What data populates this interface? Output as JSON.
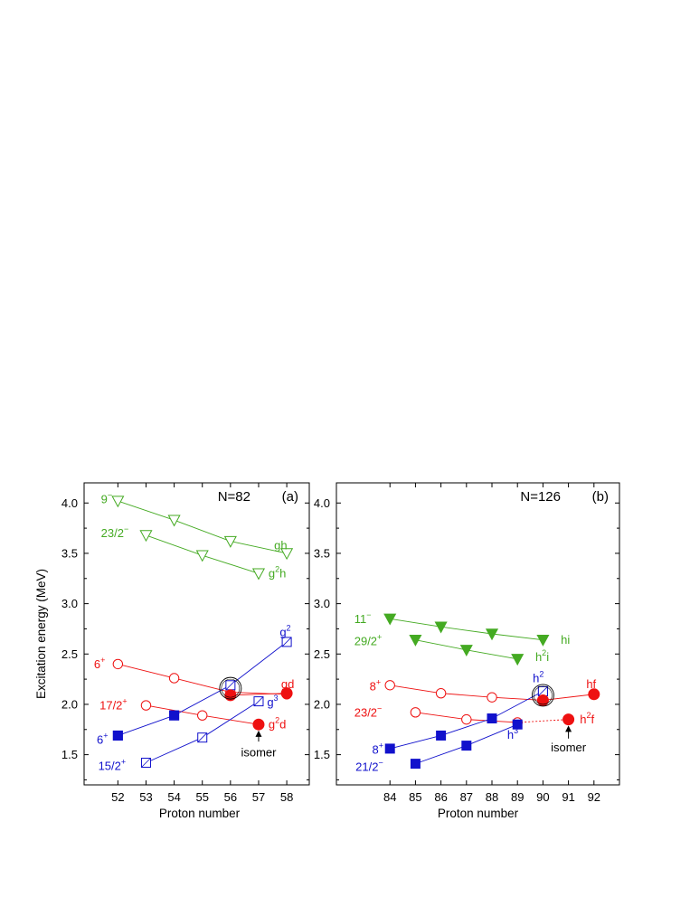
{
  "colors": {
    "red": "#ee1111",
    "blue": "#1111cc",
    "green": "#44aa22",
    "axis": "#000000"
  },
  "chart_data": [
    {
      "type": "line",
      "panel_label": "(a)",
      "shell_label": "N=82",
      "xlabel": "Proton number",
      "ylabel": "Excitation energy (MeV)",
      "xlim": [
        50.8,
        58.8
      ],
      "ylim": [
        1.2,
        4.2
      ],
      "xticks": [
        52,
        53,
        54,
        55,
        56,
        57,
        58
      ],
      "yticks": [
        1.5,
        2.0,
        2.5,
        3.0,
        3.5,
        4.0
      ],
      "ytick_labels": [
        "1.5",
        "2.0",
        "2.5",
        "3.0",
        "3.5",
        "4.0"
      ],
      "series": [
        {
          "color": "green",
          "marker": "triangle-down-open",
          "style": "solid",
          "x": [
            52,
            54,
            56,
            58
          ],
          "y": [
            4.02,
            3.83,
            3.62,
            3.5
          ],
          "start_label": {
            "text": "9",
            "sup": "−",
            "x": 51.4,
            "y": 4.04
          },
          "end_label": {
            "text": "gh",
            "sup": "",
            "x": 57.55,
            "y": 3.58
          }
        },
        {
          "color": "green",
          "marker": "triangle-down-open",
          "style": "solid",
          "x": [
            53,
            55,
            57
          ],
          "y": [
            3.68,
            3.48,
            3.3
          ],
          "start_label": {
            "text": "23/2",
            "sup": "−",
            "x": 51.4,
            "y": 3.7
          },
          "end_label": {
            "text": "g",
            "sup": "2",
            "tail": "h",
            "x": 57.35,
            "y": 3.3
          }
        },
        {
          "color": "red",
          "marker": "circle-open",
          "style": "solid",
          "x": [
            52,
            54,
            56,
            58
          ],
          "y": [
            2.4,
            2.26,
            2.12,
            2.1
          ],
          "start_label": {
            "text": "6",
            "sup": "+",
            "x": 51.15,
            "y": 2.4
          },
          "end_label": {
            "text": "gd",
            "sup": "",
            "x": 57.8,
            "y": 2.2
          }
        },
        {
          "color": "red",
          "marker": "circle-open",
          "style": "solid",
          "x": [
            53,
            55,
            57
          ],
          "y": [
            1.99,
            1.89,
            1.8
          ],
          "start_label": {
            "text": "17/2",
            "sup": "+",
            "x": 51.35,
            "y": 1.99
          },
          "end_label": {
            "text": "g",
            "sup": "2",
            "tail": "d",
            "x": 57.35,
            "y": 1.8
          }
        },
        {
          "color": "blue",
          "marker": "square-open",
          "style": "solid",
          "x": [
            52,
            54,
            56,
            58
          ],
          "y": [
            1.69,
            1.89,
            2.19,
            2.62
          ],
          "start_label": {
            "text": "6",
            "sup": "+",
            "x": 51.25,
            "y": 1.65
          },
          "end_label": {
            "text": "g",
            "sup": "2",
            "x": 57.75,
            "y": 2.72
          }
        },
        {
          "color": "blue",
          "marker": "square-open",
          "style": "solid",
          "x": [
            53,
            55,
            57
          ],
          "y": [
            1.42,
            1.67,
            2.03
          ],
          "start_label": {
            "text": "15/2",
            "sup": "+",
            "x": 51.3,
            "y": 1.39
          },
          "end_label": {
            "text": "g",
            "sup": "3",
            "x": 57.3,
            "y": 2.02
          }
        },
        {
          "color": "red",
          "marker": "none",
          "style": "solid",
          "x": [
            56,
            58
          ],
          "y": [
            2.09,
            2.11
          ]
        }
      ],
      "points": [
        {
          "x": 56,
          "y": 2.09,
          "marker": "circle-filled",
          "color": "red"
        },
        {
          "x": 58,
          "y": 2.11,
          "marker": "circle-filled",
          "color": "red"
        },
        {
          "x": 57,
          "y": 1.8,
          "marker": "circle-filled",
          "color": "red"
        },
        {
          "x": 52,
          "y": 1.69,
          "marker": "square-filled",
          "color": "blue"
        },
        {
          "x": 54,
          "y": 1.89,
          "marker": "square-filled",
          "color": "blue"
        }
      ],
      "ring": {
        "x": 56,
        "y": 2.16
      },
      "annotation": {
        "text": "isomer",
        "x": 57,
        "y": 1.52,
        "arrow_from_y": 1.63,
        "arrow_to_y": 1.74
      }
    },
    {
      "type": "line",
      "panel_label": "(b)",
      "shell_label": "N=126",
      "xlabel": "Proton number",
      "ylabel": "",
      "xlim": [
        81.9,
        93.0
      ],
      "ylim": [
        1.2,
        4.2
      ],
      "xticks": [
        84,
        85,
        86,
        87,
        88,
        89,
        90,
        91,
        92
      ],
      "yticks": [
        1.5,
        2.0,
        2.5,
        3.0,
        3.5,
        4.0
      ],
      "ytick_labels": [
        "1.5",
        "2.0",
        "2.5",
        "3.0",
        "3.5",
        "4.0"
      ],
      "series": [
        {
          "color": "green",
          "marker": "triangle-down-filled",
          "style": "solid",
          "x": [
            84,
            86,
            88,
            90
          ],
          "y": [
            2.85,
            2.77,
            2.7,
            2.64
          ],
          "start_label": {
            "text": "11",
            "sup": "−",
            "x": 82.6,
            "y": 2.85
          },
          "end_label": {
            "text": "hi",
            "sup": "",
            "x": 90.7,
            "y": 2.64
          }
        },
        {
          "color": "green",
          "marker": "triangle-down-filled",
          "style": "solid",
          "x": [
            85,
            87,
            89
          ],
          "y": [
            2.64,
            2.54,
            2.45
          ],
          "start_label": {
            "text": "29/2",
            "sup": "+",
            "x": 82.6,
            "y": 2.63
          },
          "end_label": {
            "text": "h",
            "sup": "2",
            "tail": "i",
            "x": 89.7,
            "y": 2.47
          }
        },
        {
          "color": "red",
          "marker": "circle-open",
          "style": "solid",
          "x": [
            84,
            86,
            88,
            90,
            92
          ],
          "y": [
            2.19,
            2.11,
            2.07,
            2.04,
            2.1
          ],
          "start_label": {
            "text": "8",
            "sup": "+",
            "x": 83.2,
            "y": 2.18
          },
          "end_label": {
            "text": "hf",
            "sup": "",
            "x": 91.7,
            "y": 2.2
          }
        },
        {
          "color": "red",
          "marker": "circle-open",
          "style": "solid",
          "x": [
            85,
            87,
            89
          ],
          "y": [
            1.92,
            1.85,
            1.82
          ],
          "start_label": {
            "text": "23/2",
            "sup": "−",
            "x": 82.6,
            "y": 1.92
          }
        },
        {
          "color": "red",
          "marker": "none",
          "style": "dotted",
          "x": [
            89,
            91
          ],
          "y": [
            1.82,
            1.85
          ],
          "end_label": {
            "text": "h",
            "sup": "2",
            "tail": "f",
            "x": 91.45,
            "y": 1.85
          }
        },
        {
          "color": "blue",
          "marker": "square-filled",
          "style": "solid",
          "x": [
            84,
            86,
            88,
            90
          ],
          "y": [
            1.56,
            1.69,
            1.86,
            2.13
          ],
          "start_label": {
            "text": "8",
            "sup": "+",
            "x": 83.3,
            "y": 1.55
          },
          "end_label": {
            "text": "h",
            "sup": "2",
            "x": 89.6,
            "y": 2.26
          }
        },
        {
          "color": "blue",
          "marker": "square-filled",
          "style": "solid",
          "x": [
            85,
            87,
            89
          ],
          "y": [
            1.41,
            1.59,
            1.8
          ],
          "start_label": {
            "text": "21/2",
            "sup": "−",
            "x": 82.65,
            "y": 1.38
          },
          "end_label": {
            "text": "h",
            "sup": "3",
            "x": 88.6,
            "y": 1.7
          }
        }
      ],
      "points": [
        {
          "x": 90,
          "y": 2.13,
          "marker": "square-open",
          "color": "blue"
        },
        {
          "x": 90,
          "y": 2.04,
          "marker": "circle-filled",
          "color": "red"
        },
        {
          "x": 92,
          "y": 2.1,
          "marker": "circle-filled",
          "color": "red"
        },
        {
          "x": 91,
          "y": 1.85,
          "marker": "circle-filled",
          "color": "red"
        }
      ],
      "ring": {
        "x": 90,
        "y": 2.09
      },
      "annotation": {
        "text": "isomer",
        "x": 91,
        "y": 1.57,
        "arrow_from_y": 1.66,
        "arrow_to_y": 1.79
      }
    }
  ]
}
